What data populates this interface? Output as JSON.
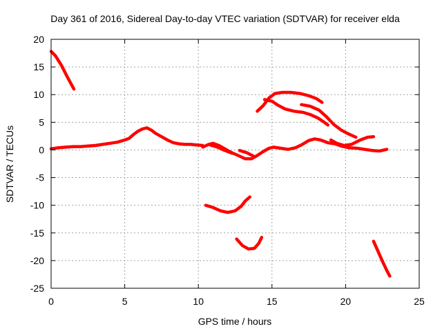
{
  "chart_data": {
    "type": "line",
    "title": "Day 361 of 2016, Sidereal Day-to-day VTEC variation (SDTVAR) for receiver elda",
    "xlabel": "GPS time / hours",
    "ylabel": "SDTVAR / TECUs",
    "xlim": [
      0,
      25
    ],
    "ylim": [
      -25,
      20
    ],
    "xticks": [
      0,
      5,
      10,
      15,
      20,
      25
    ],
    "yticks": [
      20,
      15,
      10,
      5,
      0,
      -5,
      -10,
      -15,
      -20,
      -25
    ],
    "grid": true,
    "series_color": "#ff0000",
    "series": [
      {
        "name": "arc-1",
        "points": [
          [
            0,
            17.8
          ],
          [
            0.3,
            17.0
          ],
          [
            0.7,
            15.3
          ],
          [
            1.1,
            13.2
          ],
          [
            1.55,
            11.0
          ]
        ]
      },
      {
        "name": "arc-2",
        "points": [
          [
            0,
            0.2
          ],
          [
            0.5,
            0.4
          ],
          [
            1.0,
            0.5
          ],
          [
            1.5,
            0.6
          ],
          [
            2.0,
            0.6
          ],
          [
            2.5,
            0.7
          ],
          [
            3.0,
            0.8
          ],
          [
            3.5,
            1.0
          ],
          [
            4.0,
            1.2
          ],
          [
            4.5,
            1.4
          ],
          [
            5.0,
            1.8
          ],
          [
            5.3,
            2.1
          ],
          [
            5.6,
            2.8
          ],
          [
            5.9,
            3.4
          ],
          [
            6.2,
            3.8
          ],
          [
            6.5,
            4.0
          ],
          [
            6.8,
            3.6
          ],
          [
            7.1,
            3.0
          ],
          [
            7.5,
            2.4
          ],
          [
            7.9,
            1.8
          ],
          [
            8.3,
            1.3
          ],
          [
            8.7,
            1.1
          ],
          [
            9.1,
            1.0
          ],
          [
            9.5,
            1.0
          ],
          [
            9.9,
            0.9
          ],
          [
            10.3,
            0.8
          ]
        ]
      },
      {
        "name": "arc-3",
        "points": [
          [
            10.3,
            0.5
          ],
          [
            10.7,
            1.0
          ],
          [
            11.0,
            1.2
          ],
          [
            11.4,
            0.8
          ],
          [
            11.8,
            0.2
          ],
          [
            12.2,
            -0.4
          ],
          [
            12.7,
            -1.0
          ],
          [
            13.2,
            -1.6
          ],
          [
            13.6,
            -1.6
          ],
          [
            14.0,
            -1.0
          ],
          [
            14.4,
            -0.3
          ],
          [
            14.8,
            0.3
          ],
          [
            15.1,
            0.5
          ],
          [
            15.6,
            0.3
          ],
          [
            16.1,
            0.1
          ],
          [
            16.6,
            0.4
          ],
          [
            17.0,
            0.9
          ],
          [
            17.5,
            1.7
          ],
          [
            17.9,
            2.0
          ],
          [
            18.3,
            1.8
          ],
          [
            18.8,
            1.3
          ],
          [
            19.3,
            1.1
          ],
          [
            19.7,
            0.7
          ],
          [
            20.2,
            0.4
          ],
          [
            20.8,
            0.3
          ],
          [
            21.3,
            0.1
          ],
          [
            21.8,
            -0.1
          ],
          [
            22.3,
            -0.2
          ],
          [
            22.8,
            0.1
          ]
        ]
      },
      {
        "name": "arc-4",
        "points": [
          [
            10.8,
            0.9
          ],
          [
            11.3,
            0.5
          ],
          [
            11.8,
            -0.1
          ],
          [
            12.3,
            -0.6
          ]
        ]
      },
      {
        "name": "arc-5",
        "points": [
          [
            12.8,
            -0.1
          ],
          [
            13.3,
            -0.5
          ],
          [
            13.8,
            -1.2
          ]
        ]
      },
      {
        "name": "arc-6",
        "points": [
          [
            14.0,
            7.0
          ],
          [
            14.4,
            8.0
          ],
          [
            14.8,
            9.4
          ],
          [
            15.2,
            10.2
          ],
          [
            15.7,
            10.4
          ],
          [
            16.3,
            10.4
          ],
          [
            16.9,
            10.2
          ],
          [
            17.5,
            9.8
          ],
          [
            18.0,
            9.3
          ],
          [
            18.4,
            8.6
          ]
        ]
      },
      {
        "name": "arc-7",
        "points": [
          [
            14.5,
            9.1
          ],
          [
            15.0,
            8.8
          ],
          [
            15.4,
            8.1
          ],
          [
            15.9,
            7.4
          ],
          [
            16.5,
            7.0
          ],
          [
            17.1,
            6.8
          ],
          [
            17.6,
            6.4
          ],
          [
            18.1,
            5.8
          ],
          [
            18.5,
            5.1
          ],
          [
            18.8,
            4.5
          ]
        ]
      },
      {
        "name": "arc-8",
        "points": [
          [
            17.0,
            8.2
          ],
          [
            17.6,
            7.9
          ],
          [
            18.2,
            7.2
          ],
          [
            18.7,
            6.0
          ],
          [
            19.2,
            4.6
          ],
          [
            19.7,
            3.6
          ],
          [
            20.2,
            2.9
          ],
          [
            20.7,
            2.3
          ]
        ]
      },
      {
        "name": "arc-9",
        "points": [
          [
            19.0,
            1.8
          ],
          [
            19.4,
            1.2
          ],
          [
            19.9,
            0.8
          ],
          [
            20.4,
            1.0
          ],
          [
            21.0,
            1.8
          ],
          [
            21.5,
            2.3
          ],
          [
            21.9,
            2.4
          ]
        ]
      },
      {
        "name": "arc-10",
        "points": [
          [
            10.5,
            -10.0
          ],
          [
            11.0,
            -10.4
          ],
          [
            11.5,
            -11.0
          ],
          [
            12.0,
            -11.3
          ],
          [
            12.5,
            -11.0
          ],
          [
            12.9,
            -10.2
          ],
          [
            13.2,
            -9.2
          ],
          [
            13.5,
            -8.5
          ]
        ]
      },
      {
        "name": "arc-11",
        "points": [
          [
            12.6,
            -16.1
          ],
          [
            13.0,
            -17.3
          ],
          [
            13.4,
            -17.9
          ],
          [
            13.8,
            -17.8
          ],
          [
            14.1,
            -16.9
          ],
          [
            14.3,
            -15.8
          ]
        ]
      },
      {
        "name": "arc-12",
        "points": [
          [
            21.9,
            -16.5
          ],
          [
            22.2,
            -18.3
          ],
          [
            22.5,
            -20.1
          ],
          [
            22.8,
            -21.8
          ],
          [
            23.0,
            -22.8
          ]
        ]
      }
    ]
  }
}
